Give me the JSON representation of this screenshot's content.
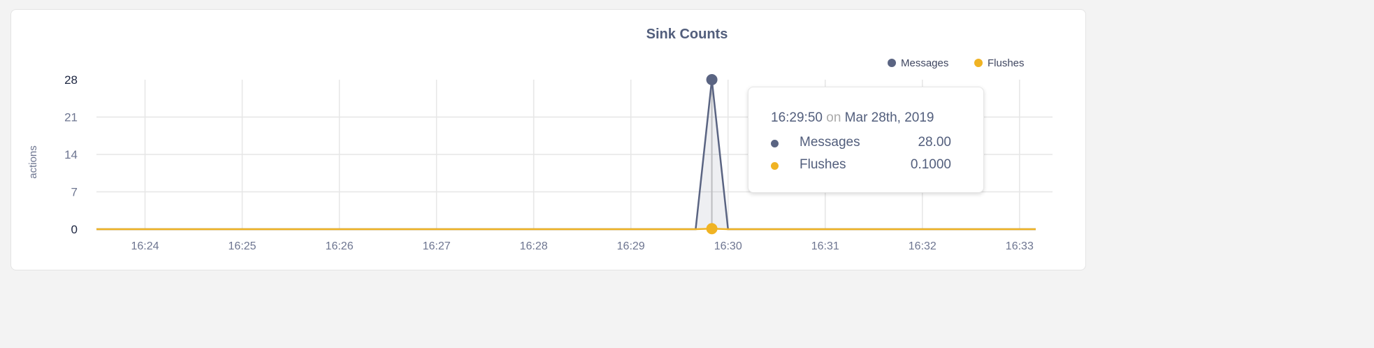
{
  "chart_data": {
    "type": "area",
    "title": "Sink Counts",
    "ylabel": "actions",
    "xlabel": "",
    "ylim": [
      0,
      28
    ],
    "xlim": [
      "16:23:30",
      "16:33:10"
    ],
    "yticks": [
      "0",
      "7",
      "14",
      "21",
      "28"
    ],
    "xticks": [
      "16:24",
      "16:25",
      "16:26",
      "16:27",
      "16:28",
      "16:29",
      "16:30",
      "16:31",
      "16:32",
      "16:33"
    ],
    "grid": true,
    "legend_position": "top-right",
    "series": [
      {
        "name": "Messages",
        "color": "#5a6482",
        "x": [
          "16:23:30",
          "16:29:40",
          "16:29:50",
          "16:30:00",
          "16:33:10"
        ],
        "values": [
          0,
          0,
          28,
          0,
          0
        ]
      },
      {
        "name": "Flushes",
        "color": "#f0b323",
        "x": [
          "16:23:30",
          "16:29:40",
          "16:29:50",
          "16:30:00",
          "16:33:10"
        ],
        "values": [
          0,
          0,
          0.1,
          0,
          0
        ]
      }
    ],
    "tooltip": {
      "time": "16:29:50",
      "on": "on",
      "date": "Mar 28th, 2019",
      "rows": [
        {
          "label": "Messages",
          "value": "28.00",
          "color": "#5a6482"
        },
        {
          "label": "Flushes",
          "value": "0.1000",
          "color": "#f0b323"
        }
      ]
    }
  }
}
